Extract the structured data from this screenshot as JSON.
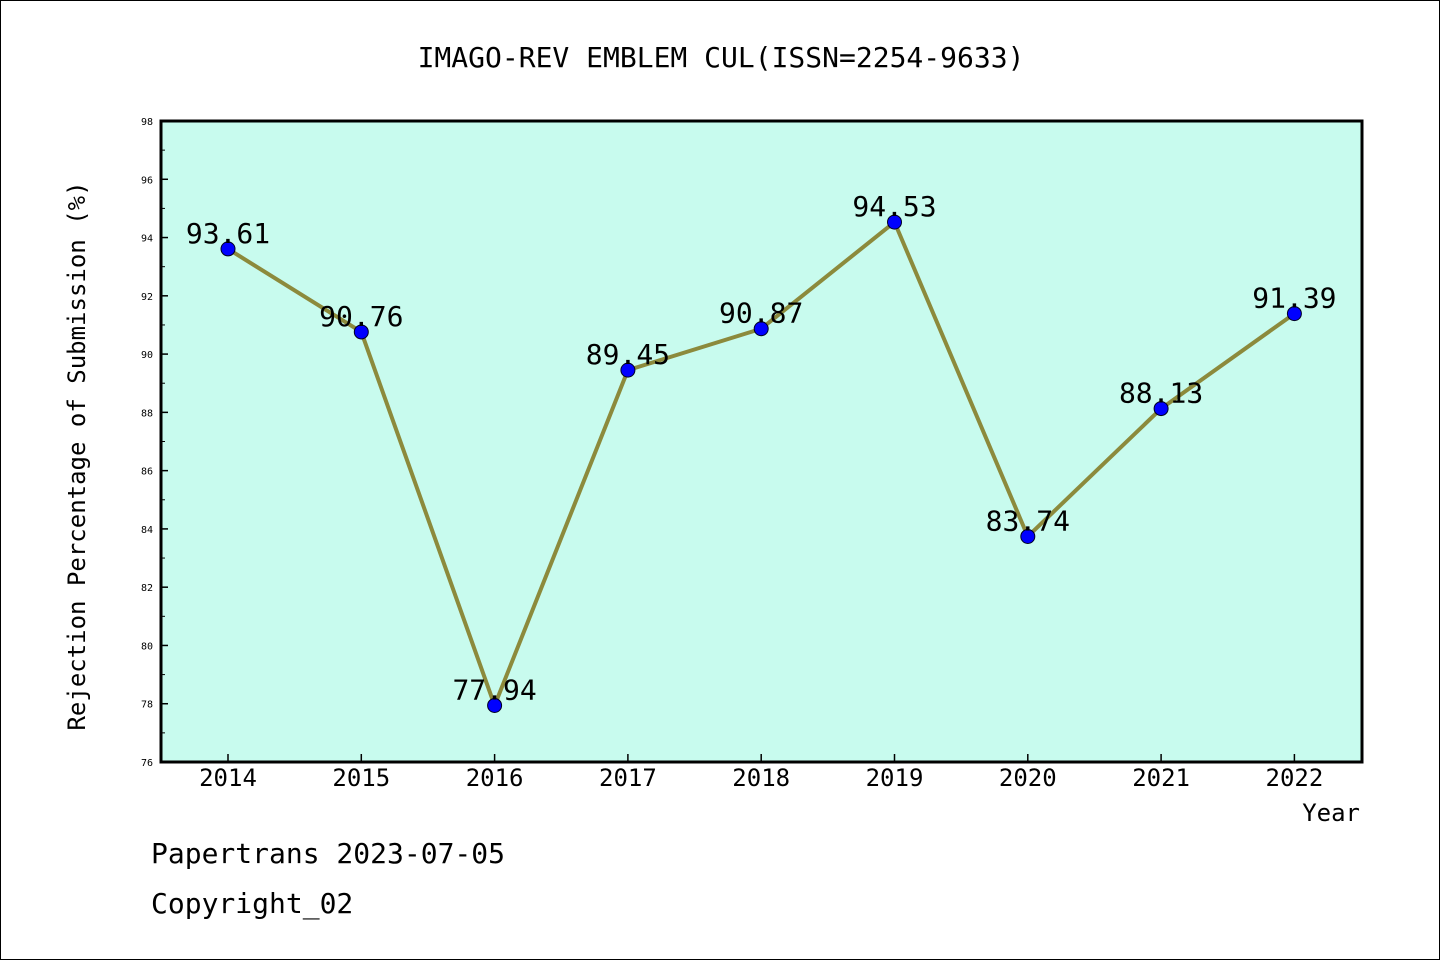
{
  "chart_data": {
    "type": "line",
    "title": "IMAGO-REV EMBLEM CUL(ISSN=2254-9633)",
    "xlabel": "Year",
    "ylabel": "Rejection Percentage of Submission (%)",
    "categories": [
      "2014",
      "2015",
      "2016",
      "2017",
      "2018",
      "2019",
      "2020",
      "2021",
      "2022"
    ],
    "series": [
      {
        "values": [
          93.61,
          90.76,
          77.94,
          89.45,
          90.87,
          94.53,
          83.74,
          88.13,
          91.39
        ],
        "labels": [
          "93.61",
          "90.76",
          "77.94",
          "89.45",
          "90.87",
          "94.53",
          "83.74",
          "88.13",
          "91.39"
        ]
      }
    ],
    "ylim": [
      76,
      98
    ],
    "y_ticks": [
      "76",
      "78",
      "80",
      "82",
      "84",
      "86",
      "88",
      "90",
      "92",
      "94",
      "96",
      "98"
    ],
    "grid": false,
    "colors": {
      "plot_background": "#c8fbee",
      "line": "#8c8a3c",
      "marker": "#0000ff"
    }
  },
  "footer": {
    "line1": "Papertrans 2023-07-05",
    "line2": "Copyright_02"
  }
}
